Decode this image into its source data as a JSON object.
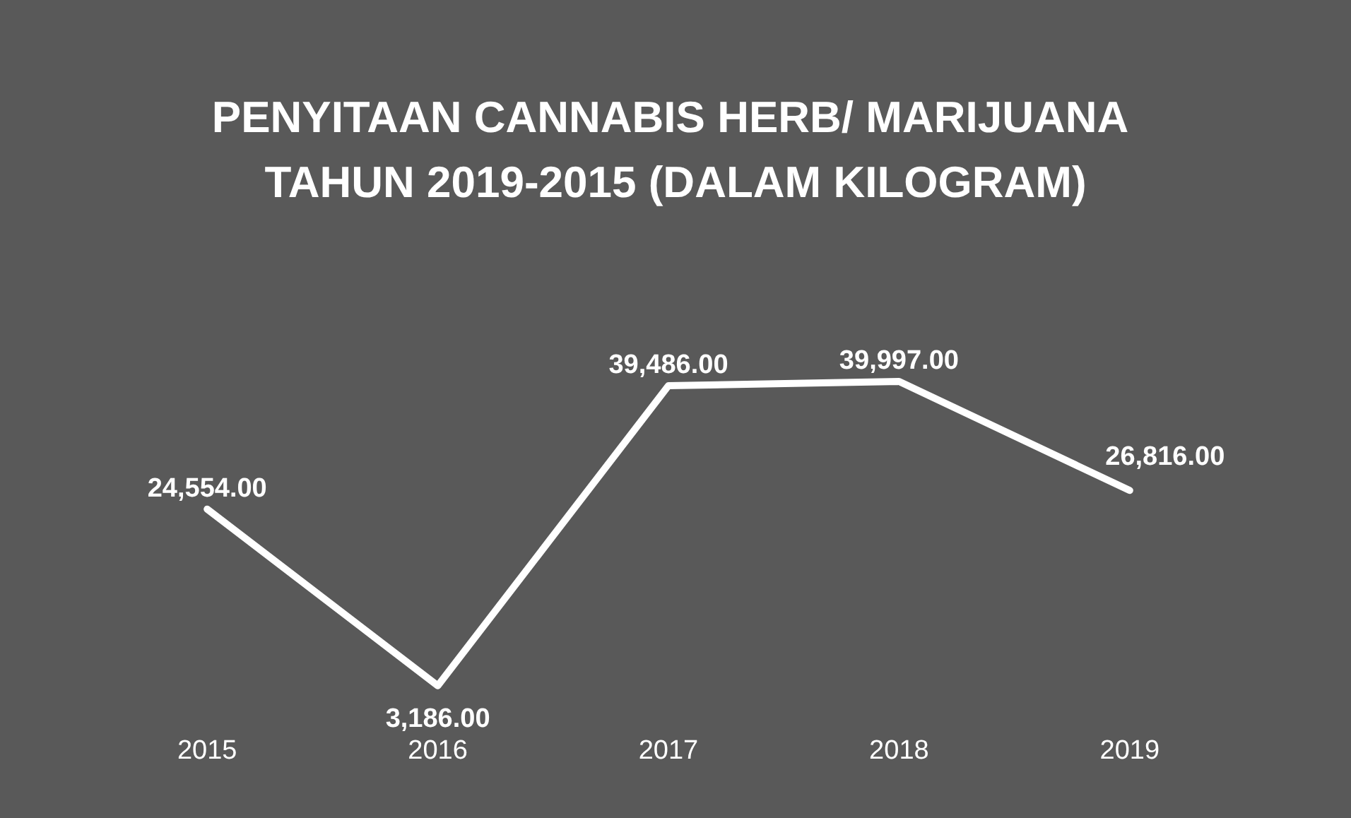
{
  "chart_data": {
    "type": "line",
    "title": "PENYITAAN CANNABIS HERB/ MARIJUANA TAHUN 2019-2015 (DALAM KILOGRAM)",
    "categories": [
      "2015",
      "2016",
      "2017",
      "2018",
      "2019"
    ],
    "series": [
      {
        "color": "#ffffff",
        "values": [
          24554,
          3186,
          39486,
          39997,
          26816
        ],
        "value_labels": [
          "24,554.00",
          "3,186.00",
          "39,486.00",
          "39,997.00",
          "26,816.00"
        ]
      }
    ],
    "grid": false,
    "marker": "none",
    "line_style": "solid"
  }
}
